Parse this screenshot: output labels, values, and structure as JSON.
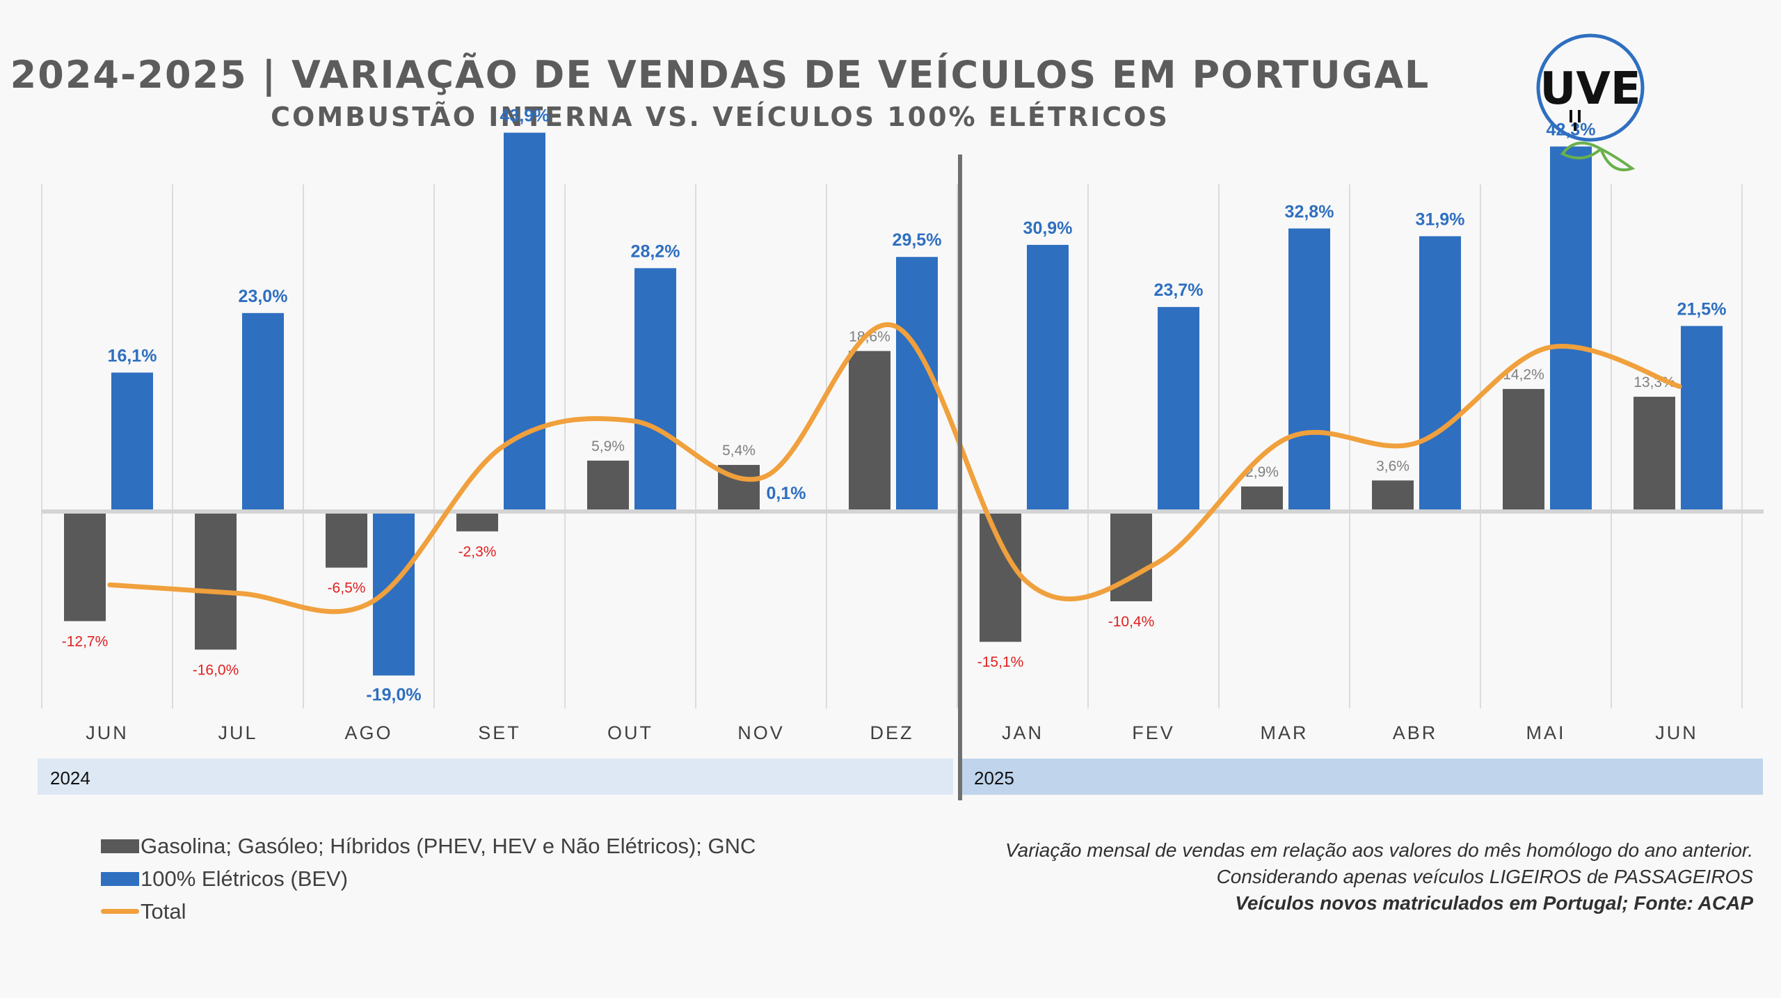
{
  "title": "2024-2025 | VARIAÇÃO DE VENDAS DE VEÍCULOS EM PORTUGAL",
  "subtitle": "COMBUSTÃO INTERNA VS. VEÍCULOS 100% ELÉTRICOS",
  "logo_text": "UVE",
  "chart_data": {
    "type": "bar",
    "categories": [
      "JUN",
      "JUL",
      "AGO",
      "SET",
      "OUT",
      "NOV",
      "DEZ",
      "JAN",
      "FEV",
      "MAR",
      "ABR",
      "MAI",
      "JUN"
    ],
    "years": [
      {
        "label": "2024",
        "months": 7
      },
      {
        "label": "2025",
        "months": 6
      }
    ],
    "ylim": [
      -30,
      50
    ],
    "series": [
      {
        "name": "Gasolina; Gasóleo; Híbridos (PHEV, HEV e Não Elétricos); GNC",
        "kind": "bar",
        "color": "#595959",
        "values": [
          -12.7,
          -16.0,
          -6.5,
          -2.3,
          5.9,
          5.4,
          18.6,
          -15.1,
          -10.4,
          2.9,
          3.6,
          14.2,
          13.3
        ],
        "labels": [
          "-12,7%",
          "-16,0%",
          "-6,5%",
          "-2,3%",
          "5,9%",
          "5,4%",
          "18,6%",
          "-15,1%",
          "-10,4%",
          "2,9%",
          "3,6%",
          "14,2%",
          "13,3%"
        ]
      },
      {
        "name": "100% Elétricos (BEV)",
        "kind": "bar",
        "color": "#2e6fc0",
        "values": [
          16.1,
          23.0,
          -19.0,
          43.9,
          28.2,
          0.1,
          29.5,
          30.9,
          23.7,
          32.8,
          31.9,
          42.3,
          21.5
        ],
        "labels": [
          "16,1%",
          "23,0%",
          "-19,0%",
          "43,9%",
          "28,2%",
          "0,1%",
          "29,5%",
          "30,9%",
          "23,7%",
          "32,8%",
          "31,9%",
          "42,3%",
          "21,5%"
        ]
      },
      {
        "name": "Total",
        "kind": "line",
        "color": "#f0a03c",
        "values": [
          -8.5,
          -9.5,
          -10.5,
          7.5,
          10.5,
          4.0,
          21.5,
          -8.0,
          -6.0,
          8.5,
          8.0,
          19.0,
          14.5
        ]
      }
    ],
    "colors": {
      "negative_label": "#e02020",
      "positive_small_label": "#7f7f7f",
      "bev_label": "#2e6fc0"
    }
  },
  "notes": {
    "line1": "Variação mensal de vendas em relação aos valores do mês homólogo do ano anterior.",
    "line2": "Considerando apenas veículos LIGEIROS de PASSAGEIROS",
    "line3": "Veículos novos matriculados em Portugal; Fonte: ACAP"
  }
}
